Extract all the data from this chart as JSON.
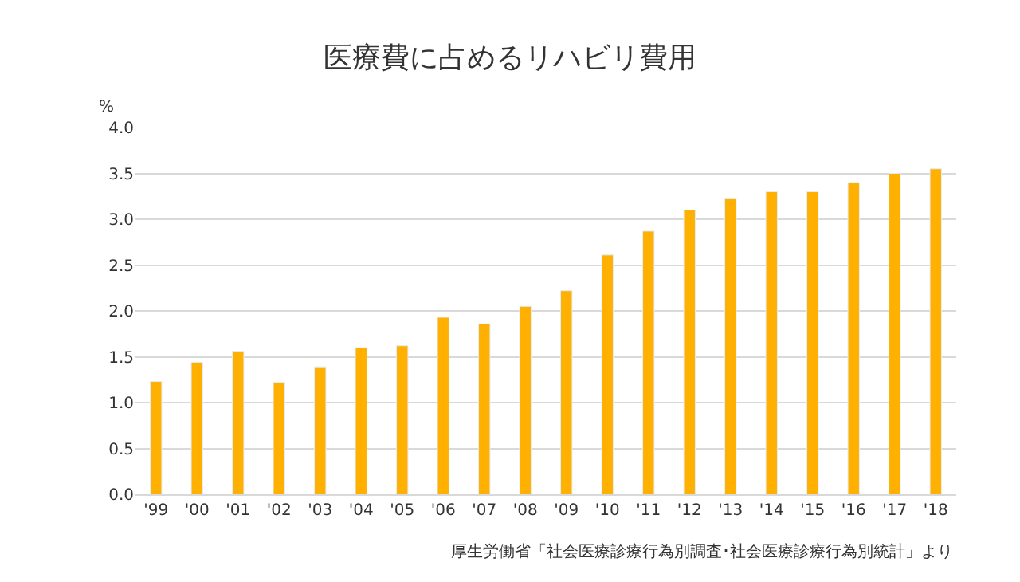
{
  "chart_data": {
    "type": "bar",
    "title": "医療費に占めるリハビリ費用",
    "ylabel": "%",
    "categories": [
      "'99",
      "'00",
      "'01",
      "'02",
      "'03",
      "'04",
      "'05",
      "'06",
      "'07",
      "'08",
      "'09",
      "'10",
      "'11",
      "'12",
      "'13",
      "'14",
      "'15",
      "'16",
      "'17",
      "'18"
    ],
    "values": [
      1.23,
      1.44,
      1.56,
      1.22,
      1.39,
      1.6,
      1.62,
      1.93,
      1.86,
      2.05,
      2.22,
      2.61,
      2.87,
      3.1,
      3.23,
      3.3,
      3.3,
      3.4,
      3.5,
      3.55
    ],
    "color": "#ffb000",
    "ylim": [
      0,
      4.0
    ],
    "yticks": [
      {
        "value": 0,
        "label": "0.0"
      },
      {
        "value": 0.5,
        "label": "0.5"
      },
      {
        "value": 1,
        "label": "1.0"
      },
      {
        "value": 1.5,
        "label": "1.5"
      },
      {
        "value": 2,
        "label": "2.0"
      },
      {
        "value": 2.5,
        "label": "2.5"
      },
      {
        "value": 3,
        "label": "3.0"
      },
      {
        "value": 3.5,
        "label": "3.5"
      },
      {
        "value": 4,
        "label": "4.0"
      }
    ],
    "grid": "y",
    "annotations": [
      "厚生労働省「社会医療診療行為別調査･社会医療診療行為別統計」より"
    ]
  }
}
